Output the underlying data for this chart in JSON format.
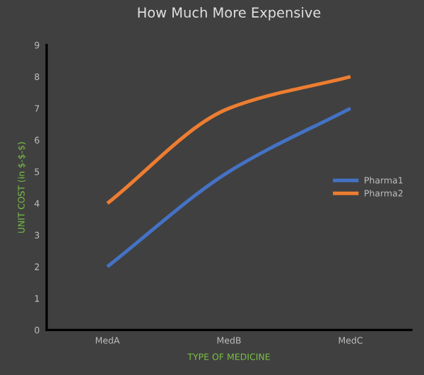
{
  "chart_data": {
    "type": "line",
    "title": "How Much More Expensive",
    "xlabel": "TYPE OF MEDICINE",
    "ylabel": "UNIT COST (in $-$-$)",
    "categories": [
      "MedA",
      "MedB",
      "MedC"
    ],
    "series": [
      {
        "name": "Pharma1",
        "color": "#4472c4",
        "values": [
          2,
          5,
          7
        ]
      },
      {
        "name": "Pharma2",
        "color": "#ed7d31",
        "values": [
          4,
          7,
          8
        ]
      }
    ],
    "ylim": [
      0,
      9
    ],
    "yticks": [
      0,
      1,
      2,
      3,
      4,
      5,
      6,
      7,
      8,
      9
    ],
    "grid": false,
    "legend": "right",
    "marker": "none",
    "line_style": "solid"
  }
}
